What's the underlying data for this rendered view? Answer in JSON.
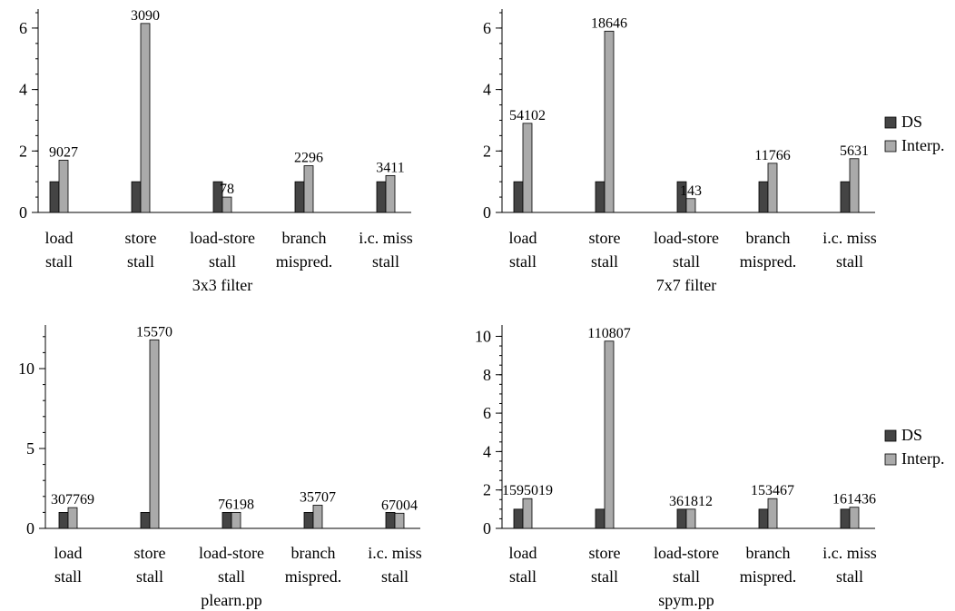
{
  "legend": {
    "labels": [
      "DS",
      "Interp."
    ],
    "colors": [
      "#444444",
      "#aaaaaa"
    ]
  },
  "chart_data": [
    {
      "type": "bar",
      "title": "3x3 filter",
      "categories": [
        [
          "load",
          "stall"
        ],
        [
          "store",
          "stall"
        ],
        [
          "load-store",
          "stall"
        ],
        [
          "branch",
          "mispred."
        ],
        [
          "i.c. miss",
          "stall"
        ]
      ],
      "series": [
        {
          "name": "DS",
          "values": [
            1,
            1,
            1,
            1,
            1
          ]
        },
        {
          "name": "Interp.",
          "values": [
            1.7,
            6.15,
            0.5,
            1.52,
            1.2
          ]
        }
      ],
      "data_labels": [
        "9027",
        "3090",
        "78",
        "2296",
        "3411"
      ],
      "yticks": [
        0,
        2,
        4,
        6
      ],
      "ylim": [
        0,
        6.5
      ],
      "grid": false,
      "legend": "none"
    },
    {
      "type": "bar",
      "title": "7x7 filter",
      "categories": [
        [
          "load",
          "stall"
        ],
        [
          "store",
          "stall"
        ],
        [
          "load-store",
          "stall"
        ],
        [
          "branch",
          "mispred."
        ],
        [
          "i.c. miss",
          "stall"
        ]
      ],
      "series": [
        {
          "name": "DS",
          "values": [
            1,
            1,
            1,
            1,
            1
          ]
        },
        {
          "name": "Interp.",
          "values": [
            2.9,
            5.9,
            0.45,
            1.6,
            1.75
          ]
        }
      ],
      "data_labels": [
        "54102",
        "18646",
        "143",
        "11766",
        "5631"
      ],
      "yticks": [
        0,
        2,
        4,
        6
      ],
      "ylim": [
        0,
        6.5
      ],
      "grid": false,
      "legend": "right"
    },
    {
      "type": "bar",
      "title": "plearn.pp",
      "categories": [
        [
          "load",
          "stall"
        ],
        [
          "store",
          "stall"
        ],
        [
          "load-store",
          "stall"
        ],
        [
          "branch",
          "mispred."
        ],
        [
          "i.c. miss",
          "stall"
        ]
      ],
      "series": [
        {
          "name": "DS",
          "values": [
            1,
            1,
            1,
            1,
            1
          ]
        },
        {
          "name": "Interp.",
          "values": [
            1.3,
            11.8,
            1.0,
            1.45,
            0.95
          ]
        }
      ],
      "data_labels": [
        "307769",
        "15570",
        "76198",
        "35707",
        "67004"
      ],
      "yticks": [
        0,
        5,
        10
      ],
      "ylim": [
        0,
        12.5
      ],
      "grid": false,
      "legend": "none"
    },
    {
      "type": "bar",
      "title": "spym.pp",
      "categories": [
        [
          "load",
          "stall"
        ],
        [
          "store",
          "stall"
        ],
        [
          "load-store",
          "stall"
        ],
        [
          "branch",
          "mispred."
        ],
        [
          "i.c. miss",
          "stall"
        ]
      ],
      "series": [
        {
          "name": "DS",
          "values": [
            1,
            1,
            1,
            1,
            1
          ]
        },
        {
          "name": "Interp.",
          "values": [
            1.55,
            9.75,
            1.0,
            1.55,
            1.1
          ]
        }
      ],
      "data_labels": [
        "1595019",
        "110807",
        "361812",
        "153467",
        "161436"
      ],
      "yticks": [
        0,
        2,
        4,
        6,
        8,
        10
      ],
      "ylim": [
        0,
        10.4
      ],
      "grid": false,
      "legend": "right"
    }
  ]
}
